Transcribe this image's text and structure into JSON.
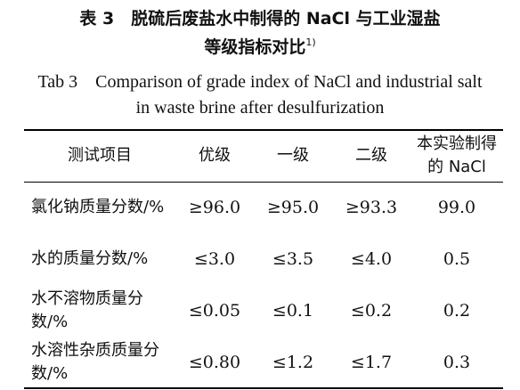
{
  "caption": {
    "cn_line1": "表 3　脱硫后废盐水中制得的 NaCl 与工业湿盐",
    "cn_line2": "等级指标对比",
    "cn_sup": "1)",
    "en_line1": "Tab 3　Comparison of grade index of NaCl and industrial salt",
    "en_line2": "in waste brine after desulfurization"
  },
  "table": {
    "headers": [
      "测试项目",
      "优级",
      "一级",
      "二级",
      "本实验制得的 NaCl"
    ],
    "rows": [
      {
        "name": "氯化钠质量分数/%",
        "values": [
          "≥96.0",
          "≥95.0",
          "≥93.3",
          "99.0"
        ]
      },
      {
        "name": "水的质量分数/%",
        "values": [
          "≤3.0",
          "≤3.5",
          "≤4.0",
          "0.5"
        ]
      },
      {
        "name": "水不溶物质量分数/%",
        "values": [
          "≤0.05",
          "≤0.1",
          "≤0.2",
          "0.2"
        ]
      },
      {
        "name": "水溶性杂质质量分数/%",
        "values": [
          "≤0.80",
          "≤1.2",
          "≤1.7",
          "0.3"
        ]
      }
    ]
  }
}
